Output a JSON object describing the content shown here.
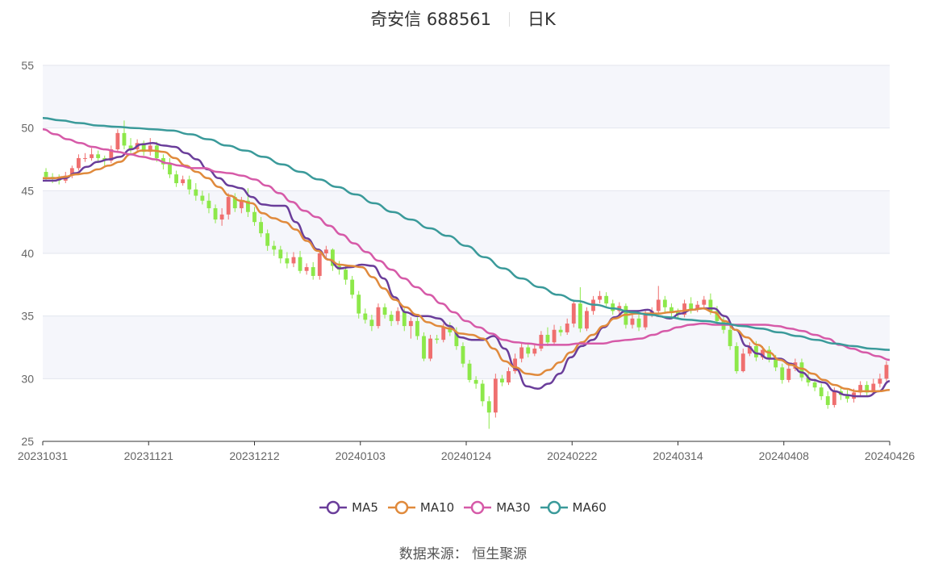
{
  "header": {
    "stock": "奇安信 688561",
    "period": "日K"
  },
  "source_text": "数据来源： 恒生聚源",
  "colors": {
    "up": "#ef6f6f",
    "down": "#8de84a",
    "band": "#f5f6fb",
    "grid": "#e3e6ee",
    "MA5": "#6a3d9a",
    "MA10": "#e08a3c",
    "MA30": "#d65aa8",
    "MA60": "#3a9a9a"
  },
  "chart_data": {
    "type": "candlestick",
    "ylim": [
      25,
      55
    ],
    "yticks": [
      25,
      30,
      35,
      40,
      45,
      50,
      55
    ],
    "xticks": [
      "20231031",
      "20231121",
      "20231212",
      "20240103",
      "20240124",
      "20240222",
      "20240314",
      "20240408",
      "20240426"
    ],
    "candles": [
      [
        46.5,
        46.1,
        46.8,
        45.8
      ],
      [
        46.1,
        46.0,
        46.4,
        45.6
      ],
      [
        46.0,
        45.8,
        46.3,
        45.5
      ],
      [
        45.8,
        46.2,
        46.5,
        45.6
      ],
      [
        46.2,
        46.8,
        47.0,
        46.0
      ],
      [
        46.8,
        47.6,
        47.9,
        46.6
      ],
      [
        47.6,
        47.6,
        48.0,
        47.3
      ],
      [
        47.6,
        47.9,
        48.4,
        47.4
      ],
      [
        47.9,
        47.6,
        48.2,
        47.2
      ],
      [
        47.6,
        47.4,
        47.8,
        47.0
      ],
      [
        47.4,
        48.3,
        48.6,
        47.2
      ],
      [
        48.3,
        49.6,
        49.9,
        48.1
      ],
      [
        49.6,
        48.6,
        50.6,
        48.3
      ],
      [
        48.6,
        48.3,
        49.2,
        48.0
      ],
      [
        48.3,
        48.8,
        49.1,
        48.1
      ],
      [
        48.8,
        48.1,
        49.0,
        47.8
      ],
      [
        48.1,
        48.6,
        49.2,
        47.8
      ],
      [
        48.6,
        47.6,
        48.9,
        47.3
      ],
      [
        47.6,
        47.1,
        47.9,
        46.7
      ],
      [
        47.1,
        46.3,
        47.6,
        46.0
      ],
      [
        46.3,
        45.6,
        46.6,
        45.3
      ],
      [
        45.6,
        45.9,
        46.2,
        45.4
      ],
      [
        45.9,
        45.1,
        46.2,
        44.7
      ],
      [
        45.1,
        44.6,
        45.6,
        44.2
      ],
      [
        44.6,
        44.2,
        45.0,
        43.9
      ],
      [
        44.2,
        43.6,
        44.8,
        43.2
      ],
      [
        43.6,
        42.7,
        43.9,
        42.4
      ],
      [
        42.7,
        43.1,
        43.6,
        42.2
      ],
      [
        43.1,
        44.5,
        44.8,
        42.7
      ],
      [
        44.5,
        43.6,
        44.8,
        43.3
      ],
      [
        43.6,
        44.2,
        44.5,
        43.2
      ],
      [
        44.2,
        43.3,
        45.2,
        42.9
      ],
      [
        43.3,
        42.5,
        43.7,
        42.2
      ],
      [
        42.5,
        41.6,
        42.9,
        41.3
      ],
      [
        41.6,
        40.6,
        41.9,
        40.2
      ],
      [
        40.6,
        40.3,
        41.0,
        39.8
      ],
      [
        40.3,
        39.6,
        40.6,
        39.2
      ],
      [
        39.6,
        39.2,
        40.1,
        38.8
      ],
      [
        39.2,
        39.7,
        40.1,
        38.9
      ],
      [
        39.7,
        38.6,
        40.2,
        38.4
      ],
      [
        38.6,
        38.9,
        39.2,
        38.3
      ],
      [
        38.9,
        38.2,
        39.3,
        37.9
      ],
      [
        38.2,
        40.0,
        40.3,
        37.9
      ],
      [
        40.0,
        40.3,
        40.6,
        39.5
      ],
      [
        40.3,
        39.0,
        40.4,
        38.6
      ],
      [
        39.0,
        38.7,
        39.4,
        38.3
      ],
      [
        38.7,
        37.9,
        39.1,
        37.5
      ],
      [
        37.9,
        36.7,
        38.2,
        36.4
      ],
      [
        36.7,
        35.2,
        37.0,
        34.8
      ],
      [
        35.2,
        34.7,
        35.6,
        34.4
      ],
      [
        34.7,
        34.2,
        35.1,
        33.8
      ],
      [
        34.2,
        35.7,
        36.0,
        34.0
      ],
      [
        35.7,
        35.1,
        36.0,
        34.8
      ],
      [
        35.1,
        34.6,
        35.4,
        34.2
      ],
      [
        34.6,
        35.4,
        35.7,
        34.3
      ],
      [
        35.4,
        34.2,
        35.6,
        33.8
      ],
      [
        34.2,
        34.6,
        34.9,
        33.2
      ],
      [
        34.6,
        33.4,
        34.9,
        33.1
      ],
      [
        33.4,
        31.6,
        33.7,
        31.4
      ],
      [
        31.6,
        33.2,
        33.5,
        31.4
      ],
      [
        33.2,
        33.1,
        33.5,
        32.8
      ],
      [
        33.1,
        34.1,
        34.4,
        32.9
      ],
      [
        34.1,
        33.7,
        34.5,
        33.4
      ],
      [
        33.7,
        32.6,
        34.1,
        32.3
      ],
      [
        32.6,
        31.2,
        32.9,
        30.9
      ],
      [
        31.2,
        29.9,
        31.5,
        29.7
      ],
      [
        29.9,
        29.6,
        30.2,
        29.2
      ],
      [
        29.6,
        28.2,
        29.9,
        27.8
      ],
      [
        28.2,
        27.3,
        28.6,
        26.0
      ],
      [
        27.3,
        30.0,
        30.4,
        26.9
      ],
      [
        30.0,
        29.7,
        30.3,
        29.4
      ],
      [
        29.7,
        30.6,
        30.9,
        29.5
      ],
      [
        30.6,
        31.6,
        32.0,
        30.4
      ],
      [
        31.6,
        32.5,
        32.8,
        31.3
      ],
      [
        32.5,
        32.0,
        32.8,
        31.7
      ],
      [
        32.0,
        32.4,
        32.7,
        31.8
      ],
      [
        32.4,
        33.5,
        33.8,
        32.2
      ],
      [
        33.5,
        32.9,
        34.1,
        32.6
      ],
      [
        32.9,
        33.9,
        34.3,
        32.7
      ],
      [
        33.9,
        33.7,
        34.2,
        33.4
      ],
      [
        33.7,
        34.4,
        34.8,
        33.5
      ],
      [
        34.4,
        36.0,
        36.3,
        34.1
      ],
      [
        36.0,
        34.0,
        37.3,
        33.7
      ],
      [
        34.0,
        35.4,
        35.7,
        33.8
      ],
      [
        35.4,
        36.3,
        36.6,
        35.1
      ],
      [
        36.3,
        36.6,
        37.0,
        36.0
      ],
      [
        36.6,
        36.0,
        36.9,
        35.7
      ],
      [
        36.0,
        35.4,
        36.3,
        35.1
      ],
      [
        35.4,
        35.8,
        36.1,
        35.1
      ],
      [
        35.8,
        34.3,
        36.0,
        34.0
      ],
      [
        34.3,
        34.8,
        35.1,
        34.0
      ],
      [
        34.8,
        34.1,
        35.1,
        33.8
      ],
      [
        34.1,
        35.1,
        35.4,
        33.9
      ],
      [
        35.1,
        35.4,
        35.7,
        34.9
      ],
      [
        35.4,
        36.3,
        37.4,
        35.2
      ],
      [
        36.3,
        35.7,
        36.6,
        35.3
      ],
      [
        35.7,
        35.3,
        36.0,
        34.9
      ],
      [
        35.3,
        35.1,
        35.6,
        34.8
      ],
      [
        35.1,
        36.0,
        36.3,
        34.9
      ],
      [
        36.0,
        35.5,
        36.5,
        35.2
      ],
      [
        35.5,
        35.9,
        36.2,
        35.3
      ],
      [
        35.9,
        36.3,
        36.6,
        35.6
      ],
      [
        36.3,
        35.4,
        36.8,
        35.1
      ],
      [
        35.4,
        34.6,
        35.8,
        34.3
      ],
      [
        34.6,
        33.9,
        35.0,
        33.6
      ],
      [
        33.9,
        32.6,
        34.2,
        32.3
      ],
      [
        32.6,
        30.6,
        32.9,
        30.4
      ],
      [
        30.6,
        32.0,
        32.4,
        30.5
      ],
      [
        32.0,
        32.6,
        32.9,
        31.8
      ],
      [
        32.6,
        31.7,
        33.0,
        31.4
      ],
      [
        31.7,
        32.3,
        32.6,
        31.5
      ],
      [
        32.3,
        31.6,
        32.6,
        31.3
      ],
      [
        31.6,
        30.9,
        31.9,
        30.6
      ],
      [
        30.9,
        29.9,
        31.2,
        29.6
      ],
      [
        29.9,
        30.8,
        31.1,
        29.7
      ],
      [
        30.8,
        31.3,
        31.6,
        30.6
      ],
      [
        31.3,
        30.1,
        31.6,
        29.8
      ],
      [
        30.1,
        29.7,
        30.4,
        29.4
      ],
      [
        29.7,
        29.3,
        30.0,
        29.0
      ],
      [
        29.3,
        28.6,
        29.6,
        28.3
      ],
      [
        28.6,
        27.9,
        29.0,
        27.6
      ],
      [
        27.9,
        29.0,
        29.3,
        27.7
      ],
      [
        29.0,
        28.7,
        29.3,
        28.3
      ],
      [
        28.7,
        28.4,
        29.1,
        28.1
      ],
      [
        28.4,
        28.9,
        29.2,
        28.1
      ],
      [
        28.9,
        29.5,
        29.8,
        28.6
      ],
      [
        29.5,
        28.9,
        29.8,
        28.6
      ],
      [
        28.9,
        29.6,
        30.0,
        28.7
      ],
      [
        29.6,
        30.0,
        30.4,
        29.3
      ],
      [
        30.0,
        31.1,
        31.4,
        29.8
      ]
    ],
    "series": [
      {
        "name": "MA5",
        "values": [
          45.8,
          45.8,
          46.0,
          46.4,
          46.9,
          47.3,
          47.5,
          47.7,
          48.3,
          48.7,
          48.8,
          48.6,
          48.5,
          48.0,
          47.5,
          46.7,
          46.0,
          45.4,
          45.2,
          44.5,
          43.9,
          43.8,
          43.8,
          42.5,
          41.2,
          40.3,
          39.5,
          38.8,
          38.9,
          39.1,
          39.0,
          38.0,
          36.5,
          35.3,
          35.0,
          35.0,
          34.8,
          34.2,
          33.3,
          33.1,
          33.1,
          33.4,
          32.4,
          30.8,
          29.4,
          29.2,
          29.6,
          30.4,
          31.7,
          32.6,
          33.1,
          34.1,
          34.9,
          35.4,
          35.4,
          35.5,
          35.0,
          34.8,
          35.2,
          35.5,
          35.6,
          35.6,
          35.0,
          33.9,
          32.6,
          32.0,
          31.6,
          31.6,
          31.2,
          30.5,
          29.9,
          29.7,
          29.0,
          28.7,
          28.6,
          28.6,
          29.0,
          29.8
        ]
      },
      {
        "name": "MA10",
        "values": [
          46.0,
          46.0,
          46.1,
          46.3,
          46.4,
          46.7,
          47.0,
          47.3,
          47.9,
          48.2,
          48.2,
          48.1,
          47.6,
          47.0,
          46.5,
          46.0,
          45.3,
          44.6,
          44.2,
          44.0,
          43.2,
          42.8,
          42.5,
          41.9,
          41.0,
          40.2,
          39.5,
          39.1,
          39.0,
          38.9,
          38.1,
          37.2,
          36.3,
          35.7,
          35.1,
          34.5,
          34.2,
          34.0,
          33.6,
          33.5,
          33.2,
          32.4,
          31.4,
          30.9,
          30.4,
          30.3,
          30.7,
          31.3,
          32.1,
          32.9,
          33.5,
          34.2,
          34.8,
          35.1,
          35.2,
          35.2,
          35.2,
          35.3,
          35.4,
          35.5,
          35.6,
          35.3,
          34.6,
          33.9,
          33.3,
          32.7,
          32.1,
          31.5,
          31.1,
          30.8,
          30.4,
          29.9,
          29.5,
          29.2,
          29.0,
          29.0,
          29.0,
          29.1
        ]
      },
      {
        "name": "MA30",
        "values": [
          49.9,
          49.5,
          49.1,
          48.8,
          48.5,
          48.3,
          48.1,
          47.9,
          47.7,
          47.5,
          47.2,
          47.0,
          46.8,
          46.8,
          46.5,
          46.4,
          46.2,
          45.9,
          45.4,
          44.8,
          44.1,
          43.4,
          42.9,
          42.2,
          41.5,
          40.8,
          40.1,
          39.4,
          38.7,
          38.0,
          37.3,
          36.7,
          36.0,
          35.3,
          34.6,
          34.1,
          33.6,
          33.1,
          32.9,
          32.8,
          32.7,
          32.7,
          32.7,
          32.8,
          32.8,
          32.8,
          33.0,
          33.1,
          33.2,
          33.5,
          33.8,
          34.1,
          34.3,
          34.4,
          34.3,
          34.3,
          34.3,
          34.3,
          34.3,
          34.2,
          34.0,
          33.8,
          33.5,
          33.2,
          32.7,
          32.4,
          32.1,
          31.8,
          31.5
        ]
      },
      {
        "name": "MA60",
        "values": [
          50.8,
          50.6,
          50.4,
          50.2,
          50.1,
          50.0,
          49.9,
          49.8,
          49.5,
          49.1,
          48.6,
          48.2,
          47.7,
          47.1,
          46.5,
          45.9,
          45.3,
          44.7,
          44.0,
          43.3,
          42.7,
          42.0,
          41.4,
          40.6,
          39.7,
          38.8,
          38.0,
          37.3,
          36.7,
          36.2,
          35.9,
          35.6,
          35.3,
          35.1,
          34.9,
          34.7,
          34.6,
          34.4,
          34.2,
          34.0,
          33.7,
          33.4,
          33.1,
          32.8,
          32.6,
          32.4,
          32.3
        ]
      }
    ],
    "legend": [
      "MA5",
      "MA10",
      "MA30",
      "MA60"
    ],
    "legend_position": "bottom-center",
    "grid": true
  }
}
